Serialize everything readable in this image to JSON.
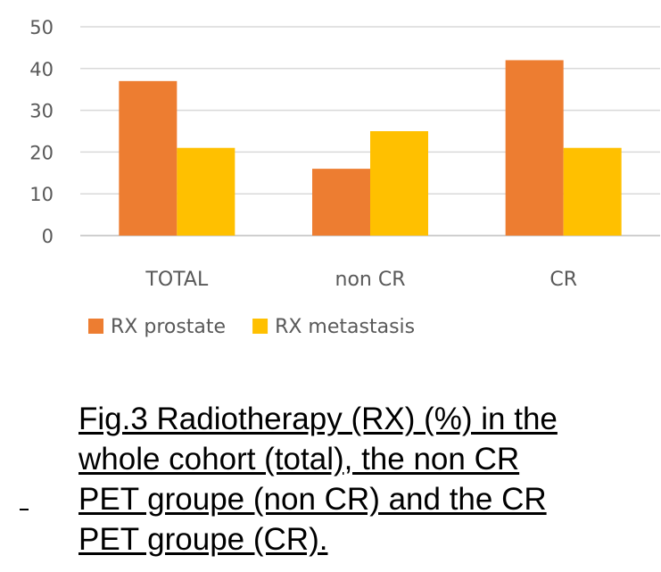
{
  "chart_data": {
    "type": "bar",
    "categories": [
      "TOTAL",
      "non CR",
      "CR"
    ],
    "series": [
      {
        "name": "RX prostate",
        "values": [
          37,
          16,
          42
        ],
        "color": "#ED7D31"
      },
      {
        "name": "RX metastasis",
        "values": [
          21,
          25,
          21
        ],
        "color": "#FFC000"
      }
    ],
    "ylim": [
      0,
      50
    ],
    "yticks": [
      0,
      10,
      20,
      30,
      40,
      50
    ],
    "grid": true,
    "legend": "bottom",
    "title": "",
    "xlabel": "",
    "ylabel": ""
  },
  "caption": {
    "lines": [
      "Fig.3 Radiotherapy (RX) (%) in the",
      "whole cohort (total), the non CR",
      "PET groupe (non CR) and the CR",
      "PET groupe (CR)."
    ]
  }
}
